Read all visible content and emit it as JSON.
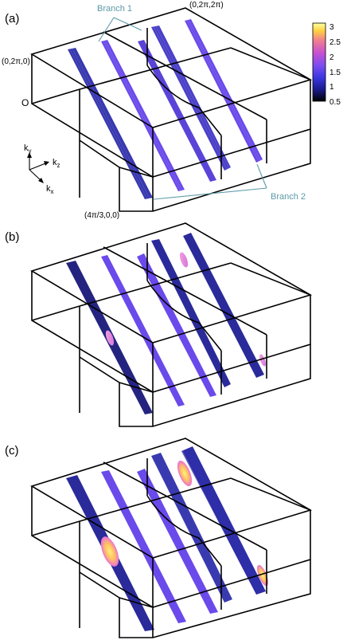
{
  "panels": [
    {
      "id": "a",
      "label": "(a)"
    },
    {
      "id": "b",
      "label": "(b)"
    },
    {
      "id": "c",
      "label": "(c)"
    }
  ],
  "annotations": {
    "branch1": "Branch 1",
    "branch2": "Branch 2",
    "corner_top_right": "(0,2π,2π)",
    "corner_left": "(0,2π,0)",
    "origin": "O",
    "corner_bottom": "(4π/3,0,0)"
  },
  "axes": {
    "ky": {
      "main": "k",
      "sub": "y"
    },
    "kz": {
      "main": "k",
      "sub": "z"
    },
    "kx": {
      "main": "k",
      "sub": "x"
    }
  },
  "colorbar": {
    "ticks": [
      "3",
      "2.5",
      "2",
      "1.5",
      "1",
      "0.5"
    ],
    "range": [
      0.5,
      3
    ],
    "stops": [
      "#000000",
      "#1a1a8c",
      "#4a3cf0",
      "#7a4cf0",
      "#c050d0",
      "#f070a0",
      "#ffd040",
      "#ffff99"
    ]
  },
  "colors": {
    "sheet_purple": "#6a48ea",
    "sheet_navy": "#2a2a9a",
    "line_teal": "#5b9aa8",
    "hot_pink": "#f2a4d0",
    "hot_yellow": "#ffe060"
  }
}
